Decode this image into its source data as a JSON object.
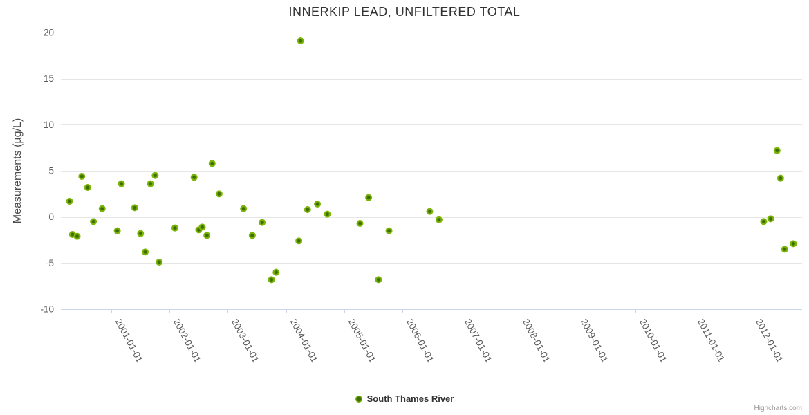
{
  "chart_data": {
    "type": "scatter",
    "title": "INNERKIP LEAD, UNFILTERED TOTAL",
    "xlabel": "",
    "ylabel": "Measurements (µg/L)",
    "credits": "Highcharts.com",
    "legend": {
      "position": "bottom-center",
      "series_label": "South Thames River"
    },
    "grid": "horizontal-only",
    "x_axis": {
      "min": 2000.13,
      "max": 2012.87,
      "tick_values": [
        2001,
        2002,
        2003,
        2004,
        2005,
        2006,
        2007,
        2008,
        2009,
        2010,
        2011,
        2012
      ],
      "tick_labels": [
        "2001-01-01",
        "2002-01-01",
        "2003-01-01",
        "2004-01-01",
        "2005-01-01",
        "2006-01-01",
        "2007-01-01",
        "2008-01-01",
        "2009-01-01",
        "2010-01-01",
        "2011-01-01",
        "2012-01-01"
      ],
      "label_rotation_deg": 62
    },
    "y_axis": {
      "min": -10,
      "max": 20,
      "tick_values": [
        20,
        15,
        10,
        5,
        0,
        -5,
        -10
      ]
    },
    "series": [
      {
        "name": "South Thames River",
        "points": [
          {
            "x": 2000.28,
            "y": 1.7
          },
          {
            "x": 2000.33,
            "y": -1.9
          },
          {
            "x": 2000.41,
            "y": -2.1
          },
          {
            "x": 2000.49,
            "y": 4.4
          },
          {
            "x": 2000.59,
            "y": 3.2
          },
          {
            "x": 2000.69,
            "y": -0.5
          },
          {
            "x": 2000.84,
            "y": 0.9
          },
          {
            "x": 2001.1,
            "y": -1.5
          },
          {
            "x": 2001.17,
            "y": 3.6
          },
          {
            "x": 2001.4,
            "y": 1.0
          },
          {
            "x": 2001.5,
            "y": -1.8
          },
          {
            "x": 2001.58,
            "y": -3.8
          },
          {
            "x": 2001.67,
            "y": 3.6
          },
          {
            "x": 2001.75,
            "y": 4.5
          },
          {
            "x": 2001.82,
            "y": -4.9
          },
          {
            "x": 2002.09,
            "y": -1.2
          },
          {
            "x": 2002.42,
            "y": 4.3
          },
          {
            "x": 2002.5,
            "y": -1.4
          },
          {
            "x": 2002.56,
            "y": -1.1
          },
          {
            "x": 2002.64,
            "y": -2.0
          },
          {
            "x": 2002.73,
            "y": 5.8
          },
          {
            "x": 2002.85,
            "y": 2.5
          },
          {
            "x": 2003.27,
            "y": 0.9
          },
          {
            "x": 2003.42,
            "y": -2.0
          },
          {
            "x": 2003.59,
            "y": -0.6
          },
          {
            "x": 2003.75,
            "y": -6.8
          },
          {
            "x": 2003.83,
            "y": -6.0
          },
          {
            "x": 2004.22,
            "y": -2.6
          },
          {
            "x": 2004.25,
            "y": 19.1
          },
          {
            "x": 2004.37,
            "y": 0.8
          },
          {
            "x": 2004.54,
            "y": 1.4
          },
          {
            "x": 2004.71,
            "y": 0.3
          },
          {
            "x": 2005.27,
            "y": -0.7
          },
          {
            "x": 2005.42,
            "y": 2.1
          },
          {
            "x": 2005.59,
            "y": -6.8
          },
          {
            "x": 2005.77,
            "y": -1.5
          },
          {
            "x": 2006.47,
            "y": 0.6
          },
          {
            "x": 2006.63,
            "y": -0.3
          },
          {
            "x": 2012.21,
            "y": -0.5
          },
          {
            "x": 2012.33,
            "y": -0.2
          },
          {
            "x": 2012.44,
            "y": 7.2
          },
          {
            "x": 2012.5,
            "y": 4.2
          },
          {
            "x": 2012.57,
            "y": -3.5
          },
          {
            "x": 2012.72,
            "y": -2.9
          }
        ]
      }
    ],
    "colors": {
      "marker_outer": "#7ab307",
      "marker_inner": "#3e6d00",
      "gridline": "#e6e6e6",
      "axis_line": "#ccd6eb",
      "tick_label": "#5a5a5a",
      "title": "#333333",
      "axis_title": "#4a4a4a",
      "legend_text": "#333333",
      "credits_text": "#999999",
      "background": "#ffffff"
    }
  }
}
